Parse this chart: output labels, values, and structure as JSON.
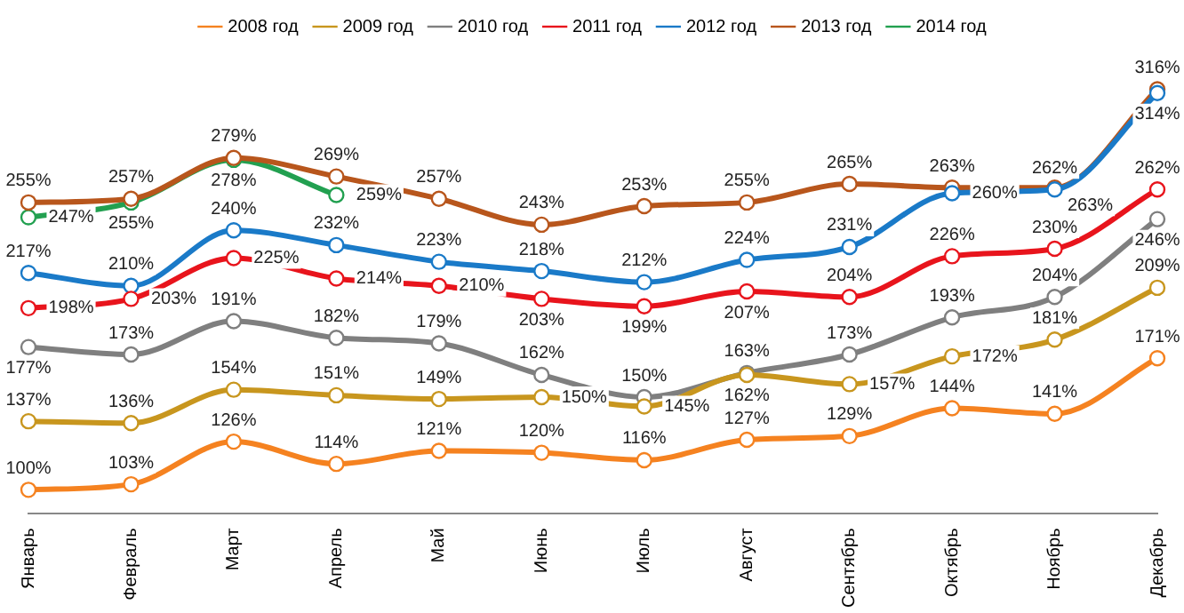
{
  "chart_data": {
    "type": "line",
    "categories": [
      "Январь",
      "Февраль",
      "Март",
      "Апрель",
      "Май",
      "Июнь",
      "Июль",
      "Август",
      "Сентябрь",
      "Октябрь",
      "Ноябрь",
      "Декабрь"
    ],
    "series": [
      {
        "name": "2008 год",
        "color": "#f58220",
        "values": [
          100,
          103,
          126,
          114,
          121,
          120,
          116,
          127,
          129,
          144,
          141,
          171
        ],
        "value_labels": [
          "100%",
          "103%",
          "126%",
          "114%",
          "121%",
          "120%",
          "116%",
          "127%",
          "129%",
          "144%",
          "141%",
          "171%"
        ]
      },
      {
        "name": "2009 год",
        "color": "#c8961e",
        "values": [
          137,
          136,
          154,
          151,
          149,
          150,
          145,
          162,
          157,
          172,
          181,
          209
        ],
        "value_labels": [
          "137%",
          "136%",
          "154%",
          "151%",
          "149%",
          "150%",
          "145%",
          "162%",
          "157%",
          "172%",
          "181%",
          "209%"
        ]
      },
      {
        "name": "2010 год",
        "color": "#7f7f7f",
        "values": [
          177,
          173,
          191,
          182,
          179,
          162,
          150,
          163,
          173,
          193,
          204,
          246
        ],
        "value_labels": [
          "177%",
          "173%",
          "191%",
          "182%",
          "179%",
          "162%",
          "150%",
          "163%",
          "173%",
          "193%",
          "204%",
          "246%"
        ]
      },
      {
        "name": "2011 год",
        "color": "#e8141c",
        "values": [
          198,
          203,
          225,
          214,
          210,
          203,
          199,
          207,
          204,
          226,
          230,
          262
        ],
        "value_labels": [
          "198%",
          "203%",
          "225%",
          "214%",
          "210%",
          "203%",
          "199%",
          "207%",
          "204%",
          "226%",
          "230%",
          "262%"
        ]
      },
      {
        "name": "2012 год",
        "color": "#1a7ac8",
        "values": [
          217,
          210,
          240,
          232,
          223,
          218,
          212,
          224,
          231,
          260,
          262,
          314
        ],
        "value_labels": [
          "217%",
          "210%",
          "240%",
          "232%",
          "223%",
          "218%",
          "212%",
          "224%",
          "231%",
          "260%",
          "262%",
          "314%"
        ]
      },
      {
        "name": "2013 год",
        "color": "#b8561c",
        "values": [
          255,
          257,
          279,
          269,
          257,
          243,
          253,
          255,
          265,
          263,
          263,
          316
        ],
        "value_labels": [
          "255%",
          "257%",
          "279%",
          "269%",
          "257%",
          "243%",
          "253%",
          "255%",
          "265%",
          "263%",
          "263%",
          "316%"
        ]
      },
      {
        "name": "2014 год",
        "color": "#22a050",
        "values": [
          247,
          255,
          278,
          259,
          null,
          null,
          null,
          null,
          null,
          null,
          null,
          null
        ],
        "value_labels": [
          "247%",
          "255%",
          "278%",
          "259%",
          null,
          null,
          null,
          null,
          null,
          null,
          null,
          null
        ]
      }
    ],
    "legend": "top",
    "marker": "circle",
    "grid": false
  }
}
